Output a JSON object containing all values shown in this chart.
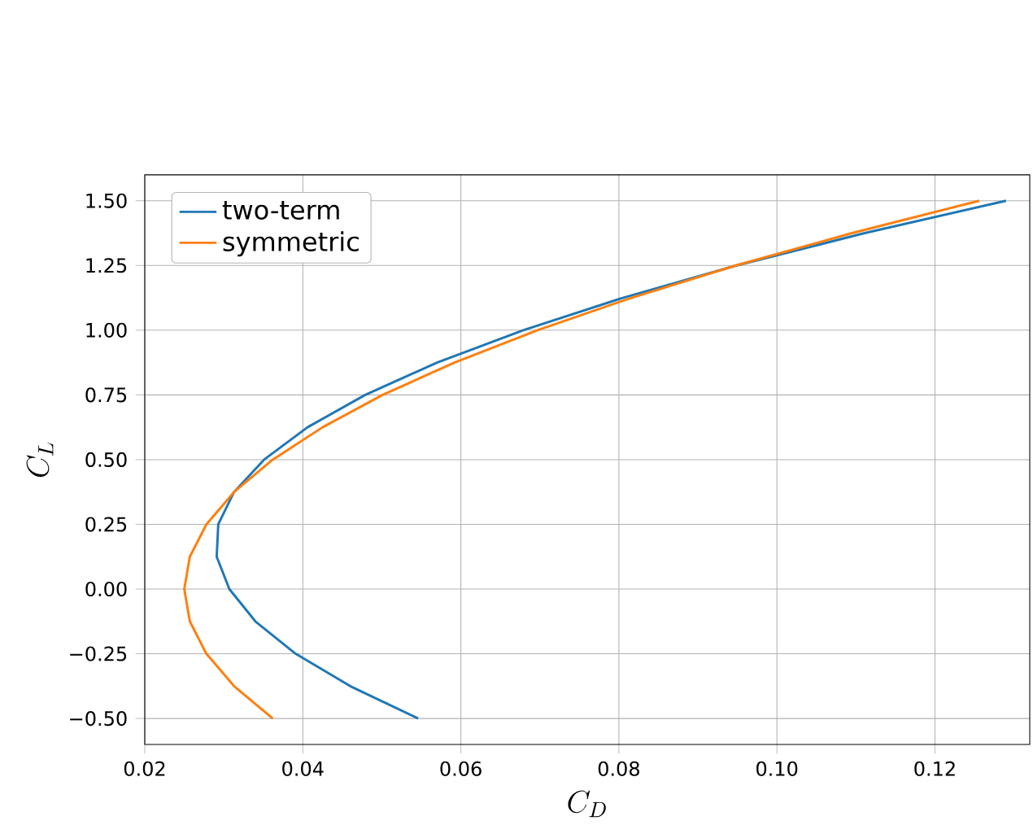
{
  "chart_data": {
    "type": "line",
    "xlabel": "C_D",
    "ylabel": "C_L",
    "xlim": [
      0.02,
      0.132
    ],
    "ylim": [
      -0.6,
      1.6
    ],
    "xticks": [
      {
        "value": 0.02,
        "label": "0.02"
      },
      {
        "value": 0.04,
        "label": "0.04"
      },
      {
        "value": 0.06,
        "label": "0.06"
      },
      {
        "value": 0.08,
        "label": "0.08"
      },
      {
        "value": 0.1,
        "label": "0.10"
      },
      {
        "value": 0.12,
        "label": "0.12"
      }
    ],
    "yticks": [
      {
        "value": -0.5,
        "label": "−0.50"
      },
      {
        "value": -0.25,
        "label": "−0.25"
      },
      {
        "value": 0,
        "label": "0.00"
      },
      {
        "value": 0.25,
        "label": "0.25"
      },
      {
        "value": 0.5,
        "label": "0.50"
      },
      {
        "value": 0.75,
        "label": "0.75"
      },
      {
        "value": 1.0,
        "label": "1.00"
      },
      {
        "value": 1.25,
        "label": "1.25"
      },
      {
        "value": 1.5,
        "label": "1.50"
      }
    ],
    "grid": true,
    "legend": "top left",
    "series": [
      {
        "name": "two-term",
        "color": "#1f77b4",
        "x": [
          0.0546,
          0.046,
          0.0391,
          0.034,
          0.0307,
          0.0291,
          0.0293,
          0.0313,
          0.0351,
          0.0406,
          0.0479,
          0.057,
          0.0679,
          0.0805,
          0.0949,
          0.1111,
          0.129
        ],
        "values": [
          -0.5,
          -0.375,
          -0.25,
          -0.125,
          0,
          0.125,
          0.25,
          0.375,
          0.5,
          0.625,
          0.75,
          0.875,
          1.0,
          1.125,
          1.25,
          1.375,
          1.5
        ]
      },
      {
        "name": "symmetric",
        "color": "#ff7f0e",
        "x": [
          0.0362,
          0.0313,
          0.0278,
          0.0257,
          0.025,
          0.0257,
          0.0278,
          0.0313,
          0.0362,
          0.0425,
          0.0501,
          0.0592,
          0.0697,
          0.0816,
          0.0948,
          0.1095,
          0.1256
        ],
        "values": [
          -0.5,
          -0.375,
          -0.25,
          -0.125,
          0,
          0.125,
          0.25,
          0.375,
          0.5,
          0.625,
          0.75,
          0.875,
          1.0,
          1.125,
          1.25,
          1.375,
          1.5
        ]
      }
    ]
  }
}
